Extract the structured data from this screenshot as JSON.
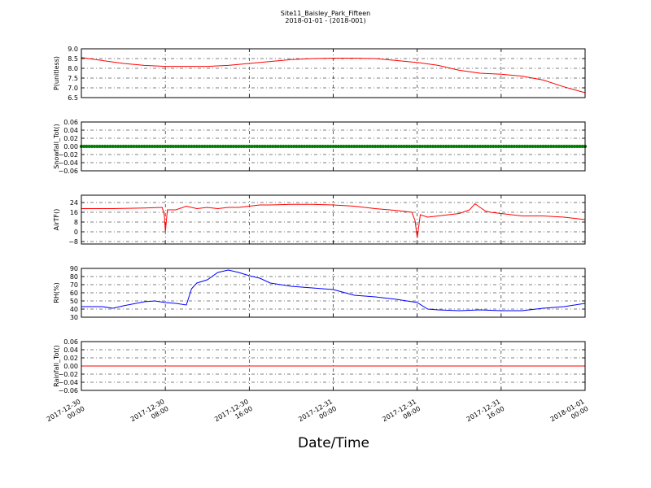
{
  "figure": {
    "title": "Site11_Baisley_Park_Fifteen",
    "subtitle": "2018-01-01 - (2018-001)",
    "xlabel": "Date/Time"
  },
  "chart_data": [
    {
      "type": "line",
      "ylabel": "P(unitless)",
      "ylim": [
        6.5,
        9.0
      ],
      "yticks": [
        "6.5",
        "7.0",
        "7.5",
        "8.0",
        "8.5",
        "9.0"
      ],
      "grid": true,
      "color": "#ff0000",
      "x_unit": "hours since 2017-12-30 00:00",
      "x": [
        0,
        2,
        4,
        6,
        8,
        10,
        12,
        14,
        16,
        18,
        20,
        22,
        24,
        26,
        28,
        30,
        32,
        34,
        36,
        38,
        40,
        42,
        44,
        46,
        48
      ],
      "y": [
        8.55,
        8.4,
        8.25,
        8.15,
        8.1,
        8.1,
        8.1,
        8.15,
        8.25,
        8.35,
        8.45,
        8.5,
        8.52,
        8.52,
        8.5,
        8.4,
        8.3,
        8.15,
        7.9,
        7.75,
        7.7,
        7.6,
        7.4,
        7.05,
        6.75
      ]
    },
    {
      "type": "scatter",
      "ylabel": "Snowfall_Tot()",
      "ylim": [
        -0.06,
        0.06
      ],
      "yticks": [
        "−0.06",
        "−0.04",
        "−0.02",
        "0.00",
        "0.02",
        "0.04",
        "0.06"
      ],
      "grid": true,
      "color": "#008000",
      "x_unit": "hours since 2017-12-30 00:00",
      "x_range": [
        0,
        48
      ],
      "interval_hours": 0.25,
      "y_constant": 0.0
    },
    {
      "type": "line",
      "ylabel": "AirTF()",
      "ylim": [
        -10,
        30
      ],
      "yticks": [
        "−8",
        "0",
        "8",
        "16",
        "24"
      ],
      "grid": true,
      "color": "#ff0000",
      "x_unit": "hours since 2017-12-30 00:00",
      "x": [
        0,
        3,
        6,
        7.7,
        7.9,
        8.0,
        8.2,
        9,
        10,
        11,
        12,
        13,
        14,
        15,
        16,
        17,
        18,
        20,
        22,
        24,
        26,
        28,
        30,
        31.5,
        31.8,
        32.0,
        32.3,
        33,
        34,
        35,
        36,
        37,
        37.5,
        38,
        38.5,
        39,
        40,
        41,
        42,
        43,
        44,
        46,
        48
      ],
      "y": [
        19,
        19,
        19.5,
        20,
        14,
        0,
        18,
        18,
        21,
        19,
        20,
        19,
        20,
        20,
        21,
        22,
        22,
        22.5,
        22.5,
        22,
        21,
        19,
        17.5,
        16,
        9,
        -5,
        14,
        12,
        13,
        14,
        15,
        18,
        23,
        20,
        17,
        16,
        15,
        14,
        13,
        13,
        13,
        12,
        10
      ]
    },
    {
      "type": "line",
      "ylabel": "RH(%)",
      "ylim": [
        30,
        90
      ],
      "yticks": [
        "30",
        "40",
        "50",
        "60",
        "70",
        "80",
        "90"
      ],
      "grid": true,
      "color": "#0000ff",
      "x_unit": "hours since 2017-12-30 00:00",
      "x": [
        0,
        2,
        3,
        4,
        6,
        7,
        8,
        9,
        10,
        10.5,
        11,
        12,
        13,
        14,
        15,
        16,
        17,
        18,
        19,
        20,
        22,
        24,
        26,
        28,
        30,
        32,
        33,
        34,
        36,
        38,
        40,
        42,
        44,
        46,
        48
      ],
      "y": [
        43,
        43,
        41,
        44,
        49,
        50,
        48,
        47,
        45,
        65,
        72,
        76,
        85,
        88,
        85,
        81,
        78,
        72,
        70,
        68,
        66,
        64,
        57,
        55,
        52,
        48,
        40,
        39,
        38,
        39,
        38,
        38,
        41,
        43,
        47
      ]
    },
    {
      "type": "line",
      "ylabel": "Rainfall_Tot()",
      "ylim": [
        -0.06,
        0.06
      ],
      "yticks": [
        "−0.06",
        "−0.04",
        "−0.02",
        "0.00",
        "0.02",
        "0.04",
        "0.06"
      ],
      "grid": true,
      "color": "#ff0000",
      "x_unit": "hours since 2017-12-30 00:00",
      "x": [
        0,
        48
      ],
      "y": [
        0.0,
        0.0
      ]
    }
  ],
  "x_axis": {
    "ticks": [
      {
        "hour": 0,
        "line1": "2017-12-30",
        "line2": "00:00"
      },
      {
        "hour": 8,
        "line1": "2017-12-30",
        "line2": "08:00"
      },
      {
        "hour": 16,
        "line1": "2017-12-30",
        "line2": "16:00"
      },
      {
        "hour": 24,
        "line1": "2017-12-31",
        "line2": "00:00"
      },
      {
        "hour": 32,
        "line1": "2017-12-31",
        "line2": "08:00"
      },
      {
        "hour": 40,
        "line1": "2017-12-31",
        "line2": "16:00"
      },
      {
        "hour": 48,
        "line1": "2018-01-01",
        "line2": "00:00"
      }
    ]
  }
}
